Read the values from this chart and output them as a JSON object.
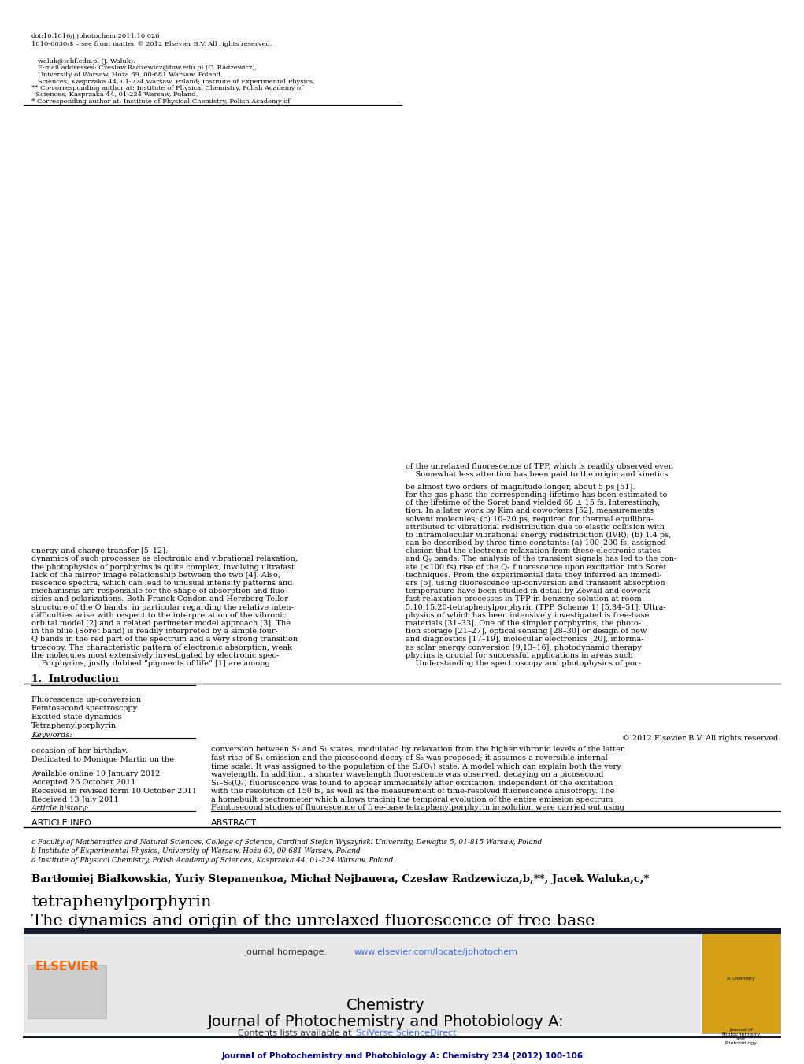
{
  "page_bg": "#ffffff",
  "top_journal_line": "Journal of Photochemistry and Photobiology A: Chemistry 234 (2012) 100-106",
  "top_line_color": "#00008B",
  "header_bg": "#e8e8e8",
  "header_sciverse_color": "#4169E1",
  "journal_title_line1": "Journal of Photochemistry and Photobiology A:",
  "journal_title_line2": "Chemistry",
  "journal_title_color": "#000000",
  "journal_homepage_color": "#4169E1",
  "elsevier_text": "ELSEVIER",
  "elsevier_color": "#FF6600",
  "dark_bar_color": "#1a1a2e",
  "affil_a": "a Institute of Physical Chemistry, Polish Academy of Sciences, Kasprzaka 44, 01-224 Warsaw, Poland",
  "affil_b": "b Institute of Experimental Physics, University of Warsaw, Hoża 69, 00-681 Warsaw, Poland",
  "affil_c": "c Faculty of Mathematics and Natural Sciences, College of Science, Cardinal Stefan Wyszyński University, Dewajtis 5, 01-815 Warsaw, Poland",
  "article_info_header": "ARTICLE INFO",
  "abstract_header": "ABSTRACT",
  "article_history_label": "Article history:",
  "received": "Received 13 July 2011",
  "received_revised": "Received in revised form 10 October 2011",
  "accepted": "Accepted 26 October 2011",
  "available": "Available online 10 January 2012",
  "dedication_line1": "Dedicated to Monique Martin on the",
  "dedication_line2": "occasion of her birthday.",
  "keywords_label": "Keywords:",
  "keywords": [
    "Tetraphenylporphyrin",
    "Excited-state dynamics",
    "Femtosecond spectroscopy",
    "Fluorescence up-conversion"
  ],
  "copyright": "© 2012 Elsevier B.V. All rights reserved.",
  "section1_header": "1.  Introduction",
  "issn_line": "1010-6030/$ – see front matter © 2012 Elsevier B.V. All rights reserved.",
  "doi_line": "doi:10.1016/j.jphotochem.2011.10.026",
  "abs_lines": [
    "Femtosecond studies of fluorescence of free-base tetraphenylporphyrin in solution were carried out using",
    "a homebuilt spectrometer which allows tracing the temporal evolution of the entire emission spectrum",
    "with the resolution of 150 fs, as well as the measurement of time-resolved fluorescence anisotropy. The",
    "S₁–S₀(Qₓ) fluorescence was found to appear immediately after excitation, independent of the excitation",
    "wavelength. In addition, a shorter wavelength fluorescence was observed, decaying on a picosecond",
    "time scale. It was assigned to the population of the S₂(Qᵧ) state. A model which can explain both the very",
    "fast rise of S₁ emission and the picosecond decay of S₂ was proposed; it assumes a reversible internal",
    "conversion between S₂ and S₁ states, modulated by relaxation from the higher vibronic levels of the latter."
  ],
  "col1_lines": [
    "    Porphyrins, justly dubbed “pigments of life” [1] are among",
    "the molecules most extensively investigated by electronic spec-",
    "troscopy. The characteristic pattern of electronic absorption, weak",
    "Q bands in the red part of the spectrum and a very strong transition",
    "in the blue (Soret band) is readily interpreted by a simple four-",
    "orbital model [2] and a related perimeter model approach [3]. The",
    "difficulties arise with respect to the interpretation of the vibronic",
    "structure of the Q bands, in particular regarding the relative inten-",
    "sities and polarizations. Both Franck-Condon and Herzberg-Teller",
    "mechanisms are responsible for the shape of absorption and fluo-",
    "rescence spectra, which can lead to unusual intensity patterns and",
    "lack of the mirror image relationship between the two [4]. Also,",
    "the photophysics of porphyrins is quite complex, involving ultrafast",
    "dynamics of such processes as electronic and vibrational relaxation,",
    "energy and charge transfer [5–12]."
  ],
  "col2_lines": [
    "    Understanding the spectroscopy and photophysics of por-",
    "phyrins is crucial for successful applications in areas such",
    "as solar energy conversion [9,13–16], photodynamic therapy",
    "and diagnostics [17–19], molecular electronics [20], informa-",
    "tion storage [21–27], optical sensing [28–30] or design of new",
    "materials [31–33]. One of the simpler porphyrins, the photo-",
    "physics of which has been intensively investigated is free-base",
    "5,10,15,20-tetraphenylporphyrin (TPP, Scheme 1) [5,34–51]. Ultra-",
    "fast relaxation processes in TPP in benzene solution at room",
    "temperature have been studied in detail by Zewail and cowork-",
    "ers [5], using fluorescence up-conversion and transient absorption",
    "techniques. From the experimental data they inferred an immedi-",
    "ate (<100 fs) rise of the Qₓ fluorescence upon excitation into Soret",
    "and Qᵧ bands. The analysis of the transient signals has led to the con-",
    "clusion that the electronic relaxation from these electronic states",
    "can be described by three time constants: (a) 100–200 fs, assigned",
    "to intramolecular vibrational energy redistribution (IVR); (b) 1.4 ps,",
    "attributed to vibrational redistribution due to elastic collision with",
    "solvent molecules; (c) 10–20 ps, required for thermal equilibra-",
    "tion. In a later work by Kim and coworkers [52], measurements",
    "of the lifetime of the Soret band yielded 68 ± 15 fs. Interestingly,",
    "for the gas phase the corresponding lifetime has been estimated to",
    "be almost two orders of magnitude longer, about 5 ps [51]."
  ],
  "col2_para2_lines": [
    "    Somewhat less attention has been paid to the origin and kinetics",
    "of the unrelaxed fluorescence of TPP, which is readily observed even"
  ],
  "footnote_lines": [
    "* Corresponding author at: Institute of Physical Chemistry, Polish Academy of",
    "  Sciences, Kasprzaka 44, 01-224 Warsaw, Poland.",
    "** Co-corresponding author at: Institute of Physical Chemistry, Polish Academy of",
    "   Sciences, Kasprzaka 44, 01-224 Warsaw, Poland; Institute of Experimental Physics,",
    "   University of Warsaw, Hoża 69, 00-681 Warsaw, Poland.",
    "   E-mail addresses: Czeslaw.Radzewicz@fuw.edu.pl (C. Radzewicz),",
    "   waluk@ichf.edu.pl (J. Waluk)."
  ]
}
